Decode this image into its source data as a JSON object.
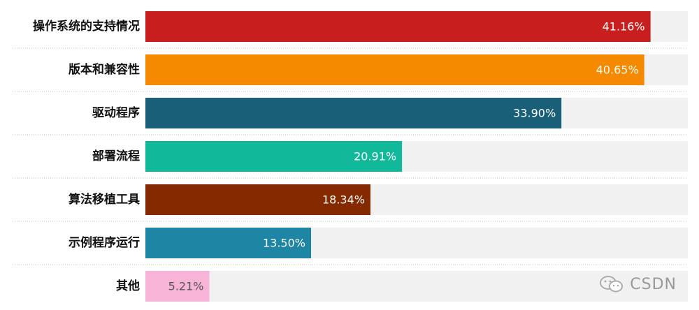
{
  "chart_data": {
    "type": "bar",
    "orientation": "horizontal",
    "categories": [
      "操作系统的支持情况",
      "版本和兼容性",
      "驱动程序",
      "部署流程",
      "算法移植工具",
      "示例程序运行",
      "其他"
    ],
    "values": [
      41.16,
      40.65,
      33.9,
      20.91,
      18.34,
      13.5,
      5.21
    ],
    "labels": [
      "41.16%",
      "40.65%",
      "33.90%",
      "20.91%",
      "18.34%",
      "13.50%",
      "5.21%"
    ],
    "colors": [
      "#c81e1e",
      "#f58a00",
      "#1a5f78",
      "#12b89a",
      "#852a00",
      "#1f85a5",
      "#f8b4d6"
    ],
    "label_colors": [
      "#ffffff",
      "#ffffff",
      "#ffffff",
      "#ffffff",
      "#ffffff",
      "#ffffff",
      "#555555"
    ],
    "track_color": "#f1f1f1",
    "xlim": [
      0,
      44.2
    ],
    "title": "",
    "xlabel": "",
    "ylabel": "",
    "grid": false,
    "legend": "none"
  },
  "watermark": {
    "icon": "wechat-icon",
    "text": "CSDN"
  }
}
